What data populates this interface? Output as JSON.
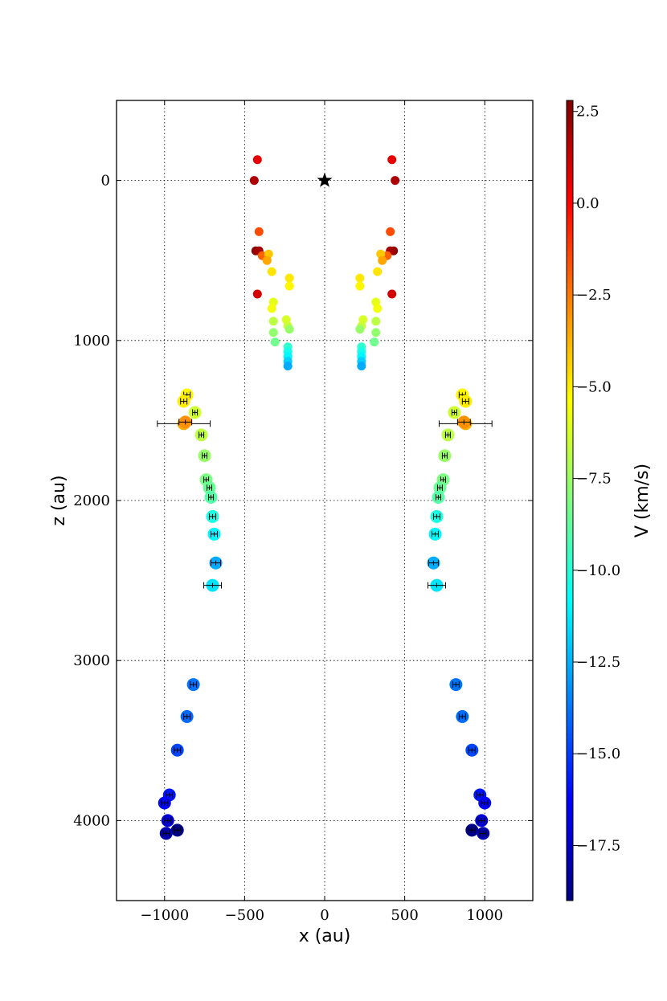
{
  "chart_data": {
    "type": "scatter",
    "title": "",
    "xlabel": "x (au)",
    "ylabel": "z (au)",
    "xlim": [
      -1300,
      1300
    ],
    "ylim": [
      -500,
      4500
    ],
    "y_inverted": true,
    "grid": true,
    "marker_star": {
      "x": 0,
      "z": 0
    },
    "x_ticks": [
      -1000,
      -500,
      0,
      500,
      1000
    ],
    "x_tick_labels": [
      "−1000",
      "−500",
      "0",
      "500",
      "1000"
    ],
    "y_ticks": [
      0,
      1000,
      2000,
      3000,
      4000
    ],
    "y_tick_labels": [
      "0",
      "1000",
      "2000",
      "3000",
      "4000"
    ],
    "colorbar": {
      "label": "V (km/s)",
      "range": [
        -19.0,
        2.8
      ],
      "colormap": "jet",
      "ticks": [
        2.5,
        0.0,
        -2.5,
        -5.0,
        -7.5,
        -10.0,
        -12.5,
        -15.0,
        -17.5
      ],
      "tick_labels": [
        "2.5",
        "0.0",
        "−2.5",
        "−5.0",
        "−7.5",
        "−10.0",
        "−12.5",
        "−15.0",
        "−17.5"
      ]
    },
    "inner_points": [
      {
        "x": 420,
        "z": -130,
        "v": 0.6
      },
      {
        "x": 440,
        "z": 0,
        "v": 1.8
      },
      {
        "x": 410,
        "z": 320,
        "v": -1.5
      },
      {
        "x": 430,
        "z": 440,
        "v": 2.5
      },
      {
        "x": 410,
        "z": 440,
        "v": 2.0
      },
      {
        "x": 390,
        "z": 470,
        "v": -2.0
      },
      {
        "x": 350,
        "z": 460,
        "v": -4.2
      },
      {
        "x": 360,
        "z": 500,
        "v": -3.5
      },
      {
        "x": 330,
        "z": 570,
        "v": -4.8
      },
      {
        "x": 220,
        "z": 610,
        "v": -4.9
      },
      {
        "x": 220,
        "z": 660,
        "v": -5.2
      },
      {
        "x": 420,
        "z": 710,
        "v": 1.0
      },
      {
        "x": 320,
        "z": 760,
        "v": -5.9
      },
      {
        "x": 330,
        "z": 800,
        "v": -5.6
      },
      {
        "x": 240,
        "z": 870,
        "v": -6.2
      },
      {
        "x": 320,
        "z": 880,
        "v": -6.8
      },
      {
        "x": 230,
        "z": 910,
        "v": -6.5
      },
      {
        "x": 320,
        "z": 950,
        "v": -7.7
      },
      {
        "x": 220,
        "z": 930,
        "v": -7.6
      },
      {
        "x": 310,
        "z": 1010,
        "v": -8.4
      },
      {
        "x": 230,
        "z": 1040,
        "v": -9.8
      },
      {
        "x": 230,
        "z": 1070,
        "v": -10.4
      },
      {
        "x": 230,
        "z": 1100,
        "v": -11.0
      },
      {
        "x": 230,
        "z": 1130,
        "v": -11.8
      },
      {
        "x": 230,
        "z": 1160,
        "v": -12.6
      }
    ],
    "outer_points": [
      {
        "x": 860,
        "z": 1340,
        "v": -5.2,
        "xerr": 20
      },
      {
        "x": 880,
        "z": 1380,
        "v": -5.0,
        "xerr": 20
      },
      {
        "x": 810,
        "z": 1450,
        "v": -6.4,
        "xerr": 15
      },
      {
        "x": 880,
        "z": 1520,
        "v": -3.6,
        "xerr": 165
      },
      {
        "x": 870,
        "z": 1510,
        "v": -3.0,
        "xerr": 40
      },
      {
        "x": 770,
        "z": 1590,
        "v": -6.8,
        "xerr": 15
      },
      {
        "x": 750,
        "z": 1720,
        "v": -7.6,
        "xerr": 15
      },
      {
        "x": 740,
        "z": 1870,
        "v": -8.2,
        "xerr": 15
      },
      {
        "x": 720,
        "z": 1920,
        "v": -8.6,
        "xerr": 15
      },
      {
        "x": 710,
        "z": 1980,
        "v": -9.0,
        "xerr": 15
      },
      {
        "x": 700,
        "z": 2100,
        "v": -10.2,
        "xerr": 20
      },
      {
        "x": 690,
        "z": 2210,
        "v": -11.0,
        "xerr": 20
      },
      {
        "x": 680,
        "z": 2390,
        "v": -12.6,
        "xerr": 30
      },
      {
        "x": 700,
        "z": 2530,
        "v": -11.4,
        "xerr": 55
      },
      {
        "x": 820,
        "z": 3150,
        "v": -13.8,
        "xerr": 20
      },
      {
        "x": 860,
        "z": 3350,
        "v": -14.0,
        "xerr": 20
      },
      {
        "x": 920,
        "z": 3560,
        "v": -14.8,
        "xerr": 20
      },
      {
        "x": 970,
        "z": 3840,
        "v": -15.8,
        "xerr": 20
      },
      {
        "x": 1000,
        "z": 3890,
        "v": -16.2,
        "xerr": 20
      },
      {
        "x": 980,
        "z": 4000,
        "v": -17.2,
        "xerr": 20
      },
      {
        "x": 920,
        "z": 4060,
        "v": -18.8,
        "xerr": 20
      },
      {
        "x": 990,
        "z": 4080,
        "v": -18.0,
        "xerr": 20
      }
    ]
  }
}
